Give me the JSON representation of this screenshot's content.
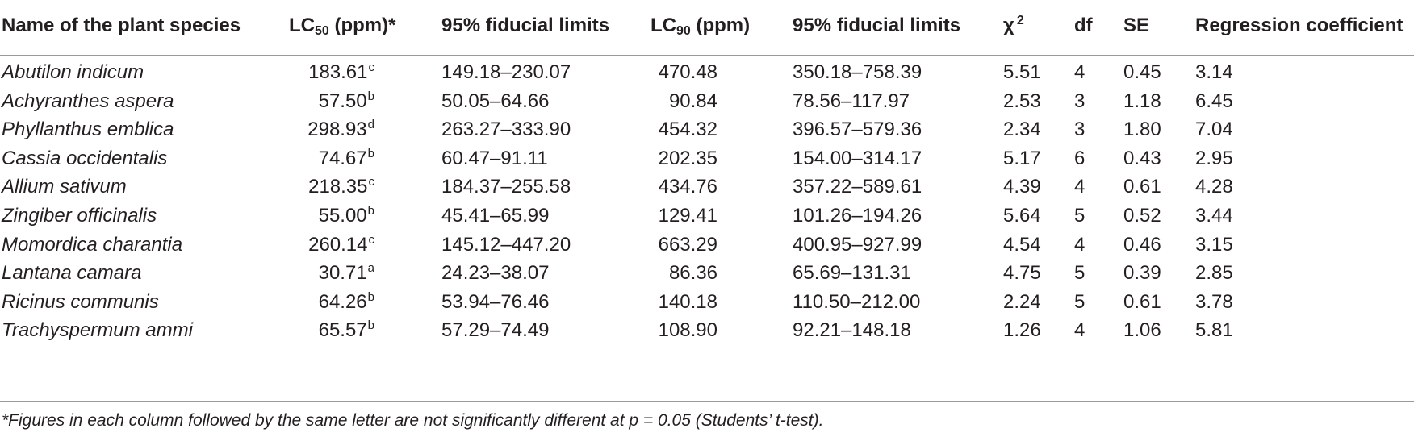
{
  "headers": {
    "species": "Name of the plant species",
    "lc50_pre": "LC",
    "lc50_sub": "50",
    "lc50_post": " (ppm)*",
    "limits1": "95% fiducial limits",
    "lc90_pre": "LC",
    "lc90_sub": "90",
    "lc90_post": " (ppm)",
    "limits2": "95% fiducial limits",
    "chi_base": "χ",
    "chi_sup": "2",
    "df": "df",
    "se": "SE",
    "regression": "Regression coefficient"
  },
  "rows": [
    {
      "species": "Abutilon indicum",
      "lc50": "183.61",
      "lc50_letter": "c",
      "limits1": "149.18–230.07",
      "lc90": "470.48",
      "limits2": "350.18–758.39",
      "chi2": "5.51",
      "df": "4",
      "se": "0.45",
      "reg": "3.14"
    },
    {
      "species": "Achyranthes aspera",
      "lc50": "57.50",
      "lc50_letter": "b",
      "limits1": "50.05–64.66",
      "lc90": "90.84",
      "limits2": "78.56–117.97",
      "chi2": "2.53",
      "df": "3",
      "se": "1.18",
      "reg": "6.45"
    },
    {
      "species": "Phyllanthus emblica",
      "lc50": "298.93",
      "lc50_letter": "d",
      "limits1": "263.27–333.90",
      "lc90": "454.32",
      "limits2": "396.57–579.36",
      "chi2": "2.34",
      "df": "3",
      "se": "1.80",
      "reg": "7.04"
    },
    {
      "species": "Cassia occidentalis",
      "lc50": "74.67",
      "lc50_letter": "b",
      "limits1": "60.47–91.11",
      "lc90": "202.35",
      "limits2": "154.00–314.17",
      "chi2": "5.17",
      "df": "6",
      "se": "0.43",
      "reg": "2.95"
    },
    {
      "species": "Allium sativum",
      "lc50": "218.35",
      "lc50_letter": "c",
      "limits1": "184.37–255.58",
      "lc90": "434.76",
      "limits2": "357.22–589.61",
      "chi2": "4.39",
      "df": "4",
      "se": "0.61",
      "reg": "4.28"
    },
    {
      "species": "Zingiber officinalis",
      "lc50": "55.00",
      "lc50_letter": "b",
      "limits1": "45.41–65.99",
      "lc90": "129.41",
      "limits2": "101.26–194.26",
      "chi2": "5.64",
      "df": "5",
      "se": "0.52",
      "reg": "3.44"
    },
    {
      "species": "Momordica charantia",
      "lc50": "260.14",
      "lc50_letter": "c",
      "limits1": "145.12–447.20",
      "lc90": "663.29",
      "limits2": "400.95–927.99",
      "chi2": "4.54",
      "df": "4",
      "se": "0.46",
      "reg": "3.15"
    },
    {
      "species": "Lantana camara",
      "lc50": "30.71",
      "lc50_letter": "a",
      "limits1": "24.23–38.07",
      "lc90": "86.36",
      "limits2": "65.69–131.31",
      "chi2": "4.75",
      "df": "5",
      "se": "0.39",
      "reg": "2.85"
    },
    {
      "species": "Ricinus communis",
      "lc50": "64.26",
      "lc50_letter": "b",
      "limits1": "53.94–76.46",
      "lc90": "140.18",
      "limits2": "110.50–212.00",
      "chi2": "2.24",
      "df": "5",
      "se": "0.61",
      "reg": "3.78"
    },
    {
      "species": "Trachyspermum ammi",
      "lc50": "65.57",
      "lc50_letter": "b",
      "limits1": "57.29–74.49",
      "lc90": "108.90",
      "limits2": "92.21–148.18",
      "chi2": "1.26",
      "df": "4",
      "se": "1.06",
      "reg": "5.81"
    }
  ],
  "footnote": "*Figures in each column followed by the same letter are not significantly different at p = 0.05 (Students’ t-test)."
}
